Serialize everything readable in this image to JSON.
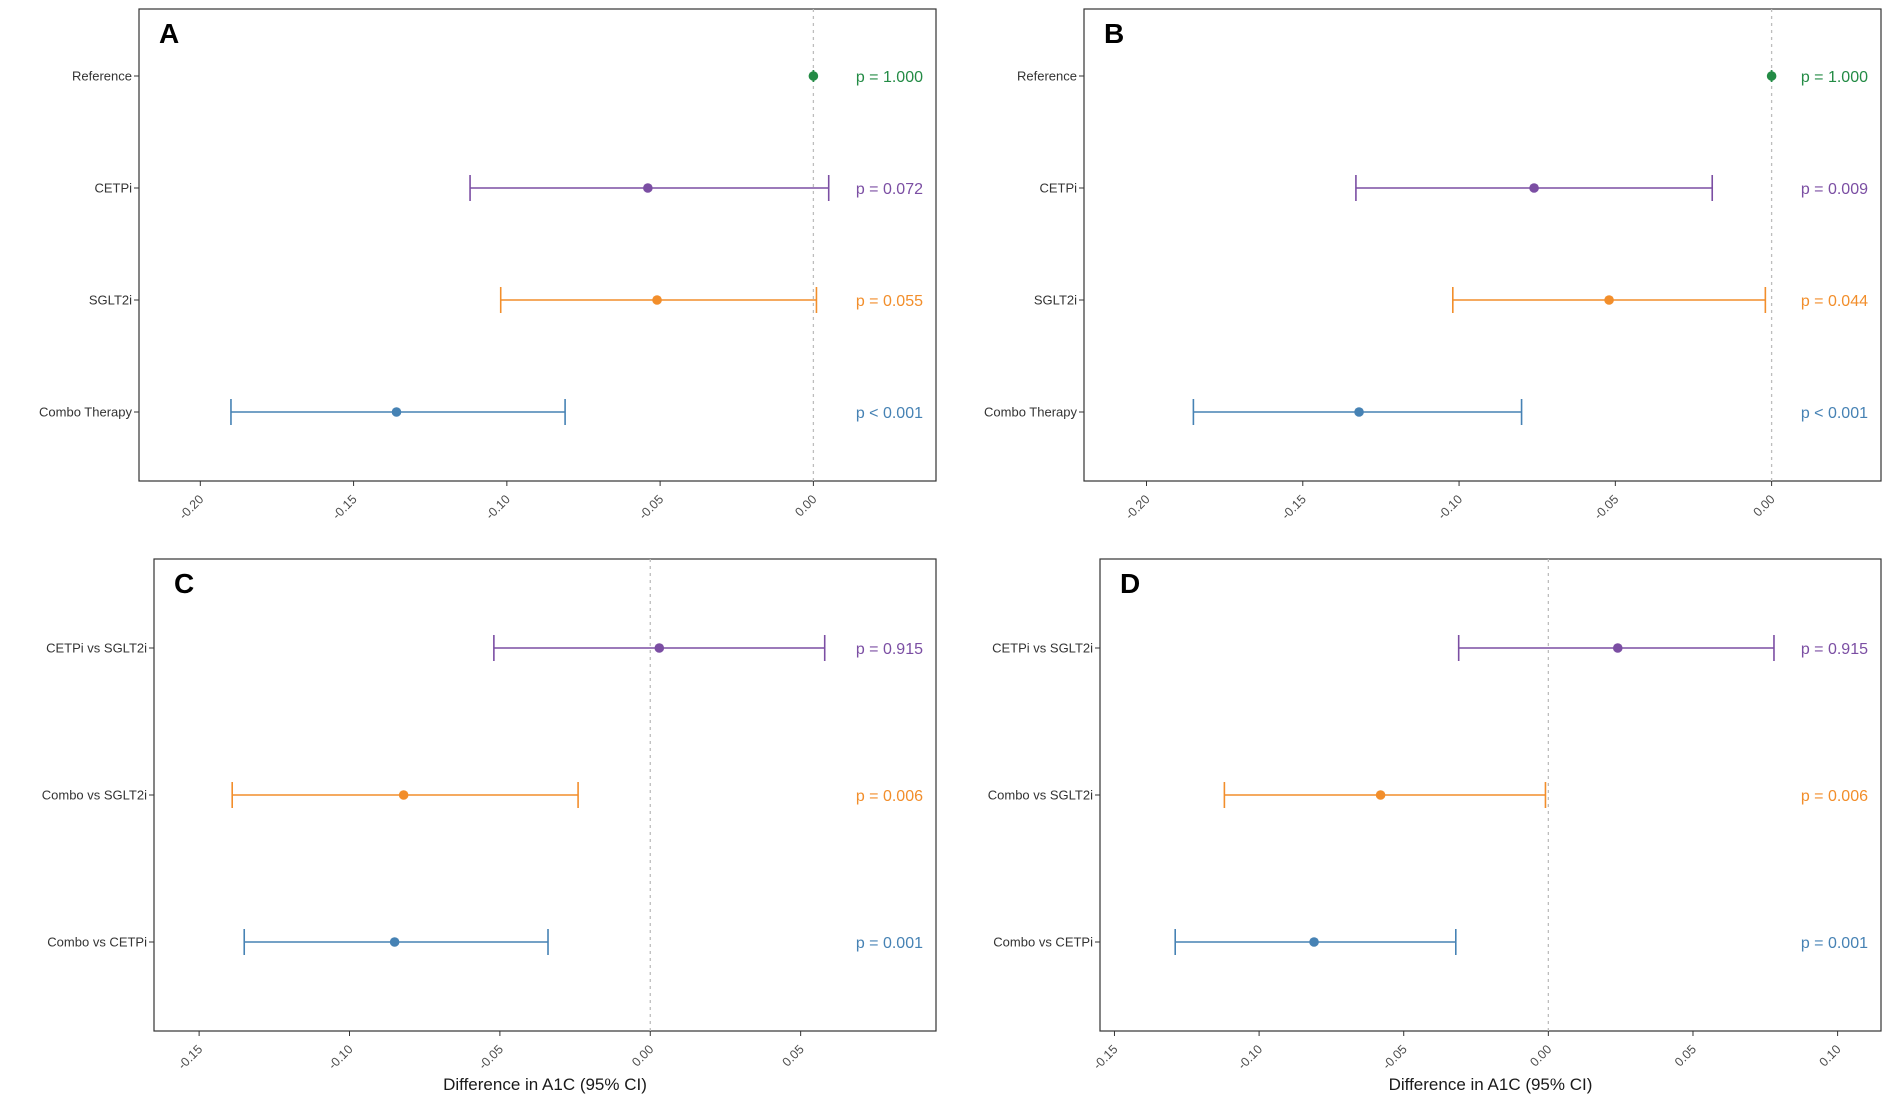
{
  "chart_data": [
    {
      "type": "forest",
      "panel": "A",
      "xlim": [
        -0.22,
        0.04
      ],
      "xticks": [
        -0.2,
        -0.15,
        -0.1,
        -0.05,
        0.0
      ],
      "xtick_labels": [
        "-0.20",
        "-0.15",
        "-0.10",
        "-0.05",
        "0.00"
      ],
      "xlabel": "",
      "reference_line": 0,
      "rows": [
        {
          "label": "Reference",
          "estimate": 0.0,
          "lower": 0.0,
          "upper": 0.0,
          "p_label": "p = 1.000",
          "color": "#238b45"
        },
        {
          "label": "CETPi",
          "estimate": -0.054,
          "lower": -0.112,
          "upper": 0.005,
          "p_label": "p = 0.072",
          "color": "#7b4ea3"
        },
        {
          "label": "SGLT2i",
          "estimate": -0.051,
          "lower": -0.102,
          "upper": 0.001,
          "p_label": "p = 0.055",
          "color": "#f28e2b"
        },
        {
          "label": "Combo Therapy",
          "estimate": -0.136,
          "lower": -0.19,
          "upper": -0.081,
          "p_label": "p < 0.001",
          "color": "#4682b4"
        }
      ]
    },
    {
      "type": "forest",
      "panel": "B",
      "xlim": [
        -0.22,
        0.035
      ],
      "xticks": [
        -0.2,
        -0.15,
        -0.1,
        -0.05,
        0.0
      ],
      "xtick_labels": [
        "-0.20",
        "-0.15",
        "-0.10",
        "-0.05",
        "0.00"
      ],
      "xlabel": "",
      "reference_line": 0,
      "rows": [
        {
          "label": "Reference",
          "estimate": 0.0,
          "lower": 0.0,
          "upper": 0.0,
          "p_label": "p = 1.000",
          "color": "#238b45"
        },
        {
          "label": "CETPi",
          "estimate": -0.076,
          "lower": -0.133,
          "upper": -0.019,
          "p_label": "p = 0.009",
          "color": "#7b4ea3"
        },
        {
          "label": "SGLT2i",
          "estimate": -0.052,
          "lower": -0.102,
          "upper": -0.002,
          "p_label": "p = 0.044",
          "color": "#f28e2b"
        },
        {
          "label": "Combo Therapy",
          "estimate": -0.132,
          "lower": -0.185,
          "upper": -0.08,
          "p_label": "p < 0.001",
          "color": "#4682b4"
        }
      ]
    },
    {
      "type": "forest",
      "panel": "C",
      "xlim": [
        -0.165,
        0.095
      ],
      "xticks": [
        -0.15,
        -0.1,
        -0.05,
        0.0,
        0.05
      ],
      "xtick_labels": [
        "-0.15",
        "-0.10",
        "-0.05",
        "0.00",
        "0.05"
      ],
      "xlabel": "Difference in A1C (95% CI)",
      "reference_line": 0,
      "rows": [
        {
          "label": "CETPi vs SGLT2i",
          "estimate": 0.003,
          "lower": -0.052,
          "upper": 0.058,
          "p_label": "p = 0.915",
          "color": "#7b4ea3"
        },
        {
          "label": "Combo vs SGLT2i",
          "estimate": -0.082,
          "lower": -0.139,
          "upper": -0.024,
          "p_label": "p = 0.006",
          "color": "#f28e2b"
        },
        {
          "label": "Combo vs CETPi",
          "estimate": -0.085,
          "lower": -0.135,
          "upper": -0.034,
          "p_label": "p = 0.001",
          "color": "#4682b4"
        }
      ]
    },
    {
      "type": "forest",
      "panel": "D",
      "xlim": [
        -0.155,
        0.115
      ],
      "xticks": [
        -0.15,
        -0.1,
        -0.05,
        0.0,
        0.05,
        0.1
      ],
      "xtick_labels": [
        "-0.15",
        "-0.10",
        "-0.05",
        "0.00",
        "0.05",
        "0.10"
      ],
      "xlabel": "Difference in A1C (95% CI)",
      "reference_line": 0,
      "rows": [
        {
          "label": "CETPi vs SGLT2i",
          "estimate": 0.024,
          "lower": -0.031,
          "upper": 0.078,
          "p_label": "p = 0.915",
          "color": "#7b4ea3"
        },
        {
          "label": "Combo vs SGLT2i",
          "estimate": -0.058,
          "lower": -0.112,
          "upper": -0.001,
          "p_label": "p = 0.006",
          "color": "#f28e2b"
        },
        {
          "label": "Combo vs CETPi",
          "estimate": -0.081,
          "lower": -0.129,
          "upper": -0.032,
          "p_label": "p = 0.001",
          "color": "#4682b4"
        }
      ]
    }
  ]
}
